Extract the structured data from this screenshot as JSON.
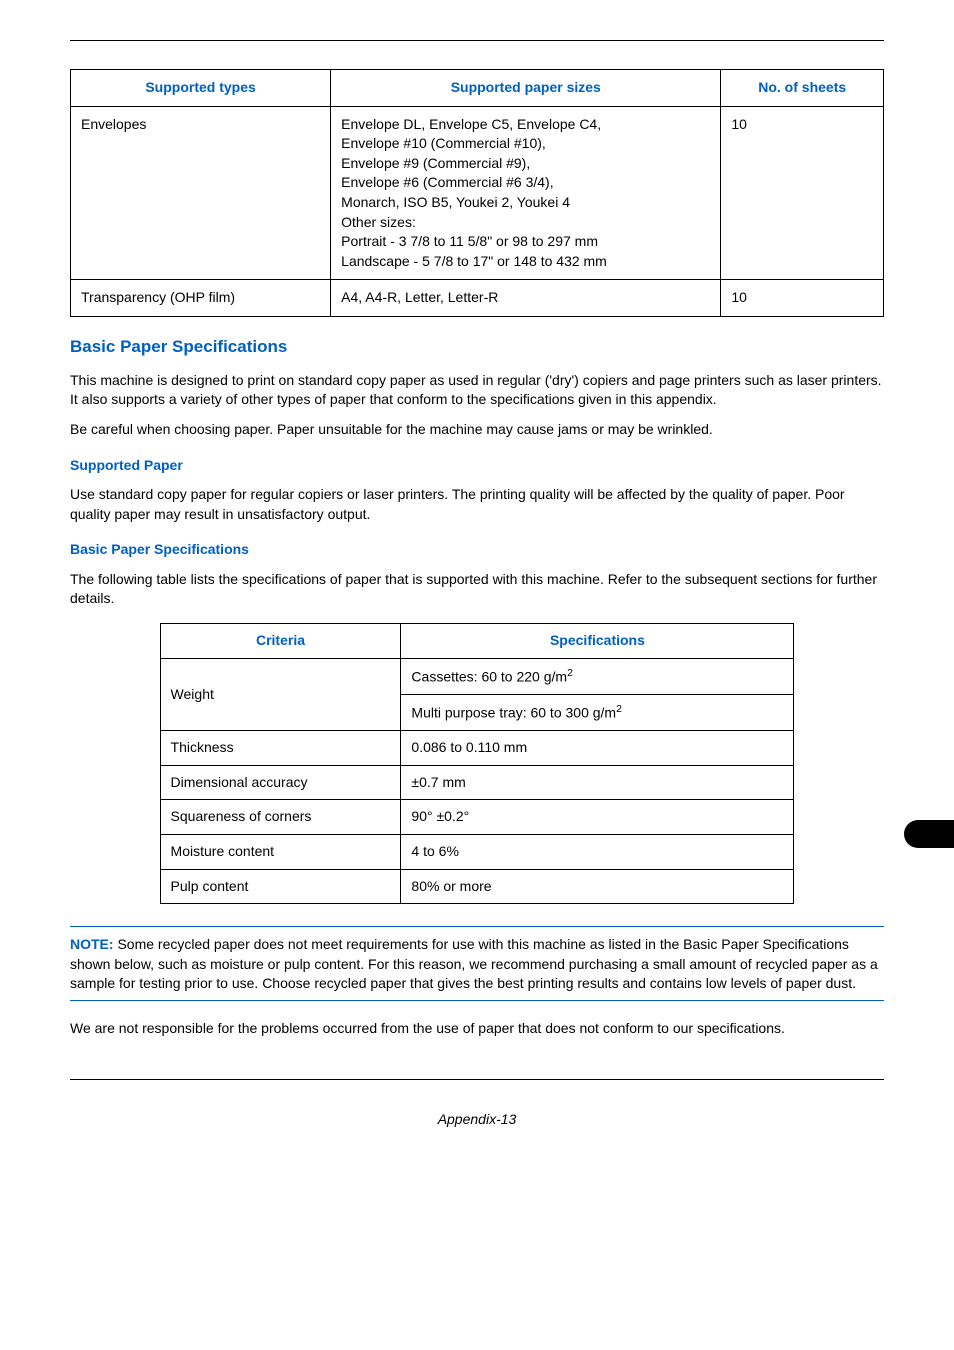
{
  "table1": {
    "headers": [
      "Supported types",
      "Supported paper sizes",
      "No. of sheets"
    ],
    "col_widths": [
      "32%",
      "48%",
      "20%"
    ],
    "rows": [
      {
        "type": "Envelopes",
        "sizes_lines": [
          "Envelope DL, Envelope C5, Envelope C4,",
          "Envelope #10 (Commercial #10),",
          "Envelope #9 (Commercial #9),",
          "Envelope #6 (Commercial #6 3/4),",
          "Monarch, ISO B5, Youkei 2, Youkei 4",
          "Other sizes:",
          "Portrait - 3 7/8 to 11 5/8\" or  98 to 297 mm",
          "Landscape - 5 7/8 to 17\" or  148 to 432 mm"
        ],
        "sheets": "10"
      },
      {
        "type": "Transparency (OHP film)",
        "sizes_lines": [
          "A4, A4-R, Letter, Letter-R"
        ],
        "sheets": "10"
      }
    ]
  },
  "section_title": "Basic Paper Specifications",
  "para1": "This machine is designed to print on standard copy paper as used in regular ('dry') copiers and page printers such as laser printers. It also supports a variety of other types of paper that conform to the specifications given in this appendix.",
  "para2": "Be careful when choosing paper. Paper unsuitable for the machine may cause jams or may be wrinkled.",
  "sub1_title": "Supported Paper",
  "sub1_para": "Use standard copy paper for regular copiers or laser printers. The printing quality will be affected by the quality of paper. Poor quality paper may result in unsatisfactory output.",
  "sub2_title": "Basic Paper Specifications",
  "sub2_para": "The following table lists the specifications of paper that is supported with this machine. Refer to the subsequent sections for further details.",
  "spec_table": {
    "headers": [
      "Criteria",
      "Specifications"
    ],
    "col_widths": [
      "38%",
      "62%"
    ],
    "rows": [
      {
        "criteria": "Weight",
        "spec": "Cassettes: 60 to 220 g/m",
        "sup": "2",
        "rowspan": 2
      },
      {
        "criteria": "",
        "spec": "Multi purpose tray: 60 to 300 g/m",
        "sup": "2"
      },
      {
        "criteria": "Thickness",
        "spec": "0.086 to 0.110 mm"
      },
      {
        "criteria": "Dimensional accuracy",
        "spec": "±0.7 mm"
      },
      {
        "criteria": "Squareness of corners",
        "spec": "90° ±0.2°"
      },
      {
        "criteria": "Moisture content",
        "spec": "4 to 6%"
      },
      {
        "criteria": "Pulp content",
        "spec": "80% or more"
      }
    ]
  },
  "note_label": "NOTE:",
  "note_text": " Some recycled paper does not meet requirements for use with this machine as listed in the Basic Paper Specifications shown below, such as moisture or pulp content. For this reason, we recommend purchasing a small amount of recycled paper as a sample for testing prior to use. Choose recycled paper that gives the best printing results and contains low levels of paper dust.",
  "closing_para": "We are not responsible for the problems occurred from the use of paper that does not conform to our specifications.",
  "footer": "Appendix-13"
}
